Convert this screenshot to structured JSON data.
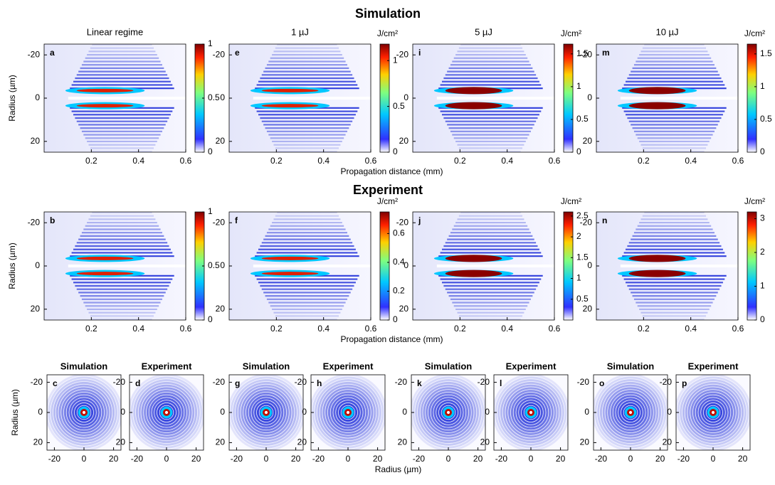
{
  "chart_data": [
    {
      "type": "heatmap",
      "section": "Simulation",
      "label": "a",
      "title": "Linear regime",
      "ylabel": "Radius (µm)",
      "xlim": [
        0,
        0.6
      ],
      "ylim": [
        -25,
        25
      ],
      "xticks": [
        0.2,
        0.4,
        0.6
      ],
      "yticks": [
        -20,
        0,
        20
      ],
      "clim": [
        0,
        1
      ],
      "cticks": [
        0,
        0.5,
        1
      ]
    },
    {
      "type": "heatmap",
      "label": "e",
      "title": "1 µJ",
      "xlabel": "Propagation distance (mm)",
      "colorbar_unit": "J/cm²",
      "xlim": [
        0,
        0.6
      ],
      "ylim": [
        -25,
        25
      ],
      "xticks": [
        0.2,
        0.4,
        0.6
      ],
      "yticks": [
        -20,
        0,
        20
      ],
      "clim": [
        0,
        1.18
      ],
      "cticks": [
        0,
        0.5,
        1
      ]
    },
    {
      "type": "heatmap",
      "label": "i",
      "title": "5 µJ",
      "colorbar_unit": "J/cm²",
      "xlim": [
        0,
        0.6
      ],
      "ylim": [
        -25,
        25
      ],
      "xticks": [
        0.2,
        0.4,
        0.6
      ],
      "yticks": [
        -20,
        0,
        20
      ],
      "clim": [
        0,
        1.65
      ],
      "cticks": [
        0,
        0.5,
        1,
        1.5
      ]
    },
    {
      "type": "heatmap",
      "label": "m",
      "title": "10 µJ",
      "colorbar_unit": "J/cm²",
      "xlim": [
        0,
        0.6
      ],
      "ylim": [
        -25,
        25
      ],
      "xticks": [
        0.2,
        0.4,
        0.6
      ],
      "yticks": [
        -20,
        0,
        20
      ],
      "clim": [
        0,
        1.65
      ],
      "cticks": [
        0,
        0.5,
        1,
        1.5
      ]
    },
    {
      "type": "heatmap",
      "section": "Experiment",
      "label": "b",
      "ylabel": "Radius (µm)",
      "xlim": [
        0,
        0.6
      ],
      "ylim": [
        -25,
        25
      ],
      "xticks": [
        0.2,
        0.4,
        0.6
      ],
      "yticks": [
        -20,
        0,
        20
      ],
      "clim": [
        0,
        1
      ],
      "cticks": [
        0,
        0.5,
        1
      ]
    },
    {
      "type": "heatmap",
      "label": "f",
      "xlabel": "Propagation distance (mm)",
      "colorbar_unit": "J/cm²",
      "xlim": [
        0,
        0.6
      ],
      "ylim": [
        -25,
        25
      ],
      "xticks": [
        0.2,
        0.4,
        0.6
      ],
      "yticks": [
        -20,
        0,
        20
      ],
      "clim": [
        0,
        0.75
      ],
      "cticks": [
        0,
        0.2,
        0.4,
        0.6
      ]
    },
    {
      "type": "heatmap",
      "label": "j",
      "colorbar_unit": "J/cm²",
      "xlim": [
        0,
        0.6
      ],
      "ylim": [
        -25,
        25
      ],
      "xticks": [
        0.2,
        0.4,
        0.6
      ],
      "yticks": [
        -20,
        0,
        20
      ],
      "clim": [
        0,
        2.6
      ],
      "cticks": [
        0.5,
        1,
        1.5,
        2,
        2.5
      ]
    },
    {
      "type": "heatmap",
      "label": "n",
      "colorbar_unit": "J/cm²",
      "xlim": [
        0,
        0.6
      ],
      "ylim": [
        -25,
        25
      ],
      "xticks": [
        0.2,
        0.4,
        0.6
      ],
      "yticks": [
        -20,
        0,
        20
      ],
      "clim": [
        0,
        3.2
      ],
      "cticks": [
        0,
        1,
        2,
        3
      ]
    },
    {
      "type": "heatmap",
      "label": "c",
      "title": "Simulation",
      "ylabel": "Radius (µm)",
      "xlim": [
        -25,
        25
      ],
      "ylim": [
        -25,
        25
      ],
      "xticks": [
        -20,
        0,
        20
      ],
      "yticks": [
        -20,
        0,
        20
      ]
    },
    {
      "type": "heatmap",
      "label": "d",
      "title": "Experiment",
      "xlim": [
        -25,
        25
      ],
      "ylim": [
        -25,
        25
      ],
      "xticks": [
        -20,
        0,
        20
      ],
      "yticks": [
        -20,
        0,
        20
      ]
    },
    {
      "type": "heatmap",
      "label": "g",
      "title": "Simulation",
      "xlim": [
        -25,
        25
      ],
      "ylim": [
        -25,
        25
      ],
      "xticks": [
        -20,
        0,
        20
      ],
      "yticks": [
        -20,
        0,
        20
      ]
    },
    {
      "type": "heatmap",
      "label": "h",
      "title": "Experiment",
      "xlabel": "Radius (µm)",
      "xlim": [
        -25,
        25
      ],
      "ylim": [
        -25,
        25
      ],
      "xticks": [
        -20,
        0,
        20
      ],
      "yticks": [
        -20,
        0,
        20
      ]
    },
    {
      "type": "heatmap",
      "label": "k",
      "title": "Simulation",
      "xlim": [
        -25,
        25
      ],
      "ylim": [
        -25,
        25
      ],
      "xticks": [
        -20,
        0,
        20
      ],
      "yticks": [
        -20,
        0,
        20
      ]
    },
    {
      "type": "heatmap",
      "label": "l",
      "title": "Experiment",
      "xlim": [
        -25,
        25
      ],
      "ylim": [
        -25,
        25
      ],
      "xticks": [
        -20,
        0,
        20
      ],
      "yticks": [
        -20,
        0,
        20
      ]
    },
    {
      "type": "heatmap",
      "label": "o",
      "title": "Simulation",
      "xlim": [
        -25,
        25
      ],
      "ylim": [
        -25,
        25
      ],
      "xticks": [
        -20,
        0,
        20
      ],
      "yticks": [
        -20,
        0,
        20
      ]
    },
    {
      "type": "heatmap",
      "label": "p",
      "title": "Experiment",
      "xlim": [
        -25,
        25
      ],
      "ylim": [
        -25,
        25
      ],
      "xticks": [
        -20,
        0,
        20
      ],
      "yticks": [
        -20,
        0,
        20
      ]
    }
  ]
}
